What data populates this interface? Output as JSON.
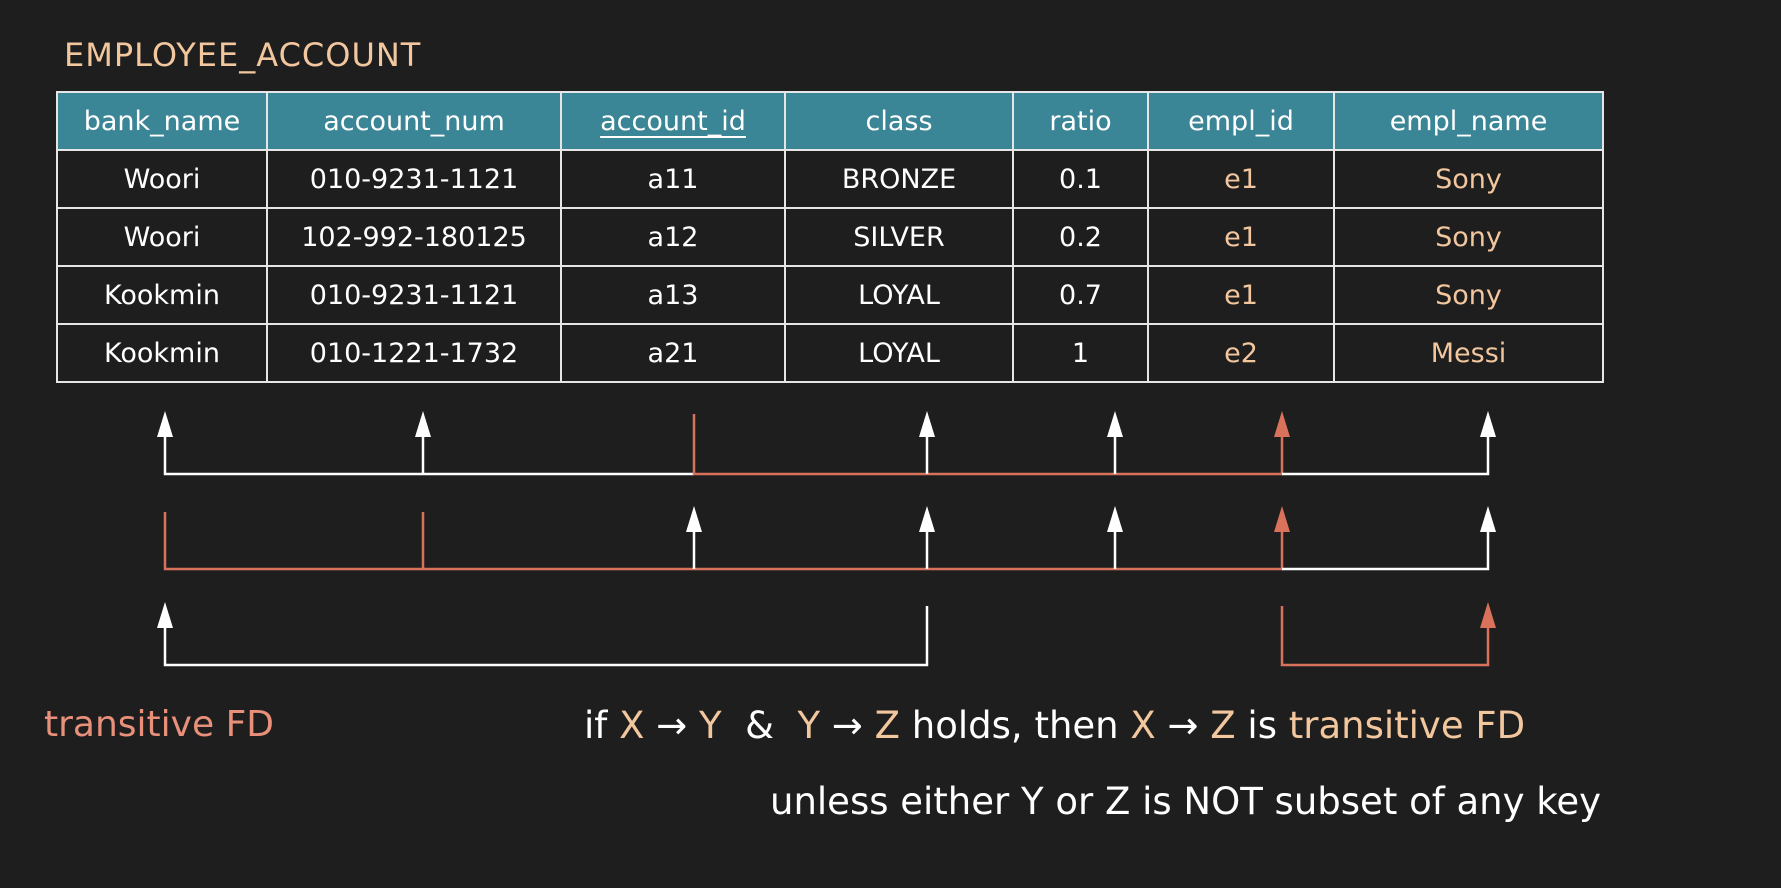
{
  "title": "EMPLOYEE_ACCOUNT",
  "colors": {
    "white": "#ffffff",
    "salmon": "#d9725a",
    "beige": "#f3c79e",
    "header_bg": "#3a8596"
  },
  "table": {
    "columns": [
      "bank_name",
      "account_num",
      "account_id",
      "class",
      "ratio",
      "empl_id",
      "empl_name"
    ],
    "primary_key": "account_id",
    "rows": [
      [
        "Woori",
        "010-9231-1121",
        "a11",
        "BRONZE",
        "0.1",
        "e1",
        "Sony"
      ],
      [
        "Woori",
        "102-992-180125",
        "a12",
        "SILVER",
        "0.2",
        "e1",
        "Sony"
      ],
      [
        "Kookmin",
        "010-9231-1121",
        "a13",
        "LOYAL",
        "0.7",
        "e1",
        "Sony"
      ],
      [
        "Kookmin",
        "010-1221-1732",
        "a21",
        "LOYAL",
        "1",
        "e2",
        "Messi"
      ]
    ]
  },
  "fd_diagram": [
    {
      "label": "fd-1",
      "determinant": [
        "account_id"
      ],
      "dependents": [
        "bank_name",
        "account_num",
        "class",
        "ratio",
        "empl_id",
        "empl_name"
      ],
      "highlight": "empl_id"
    },
    {
      "label": "fd-2",
      "determinant": [
        "bank_name",
        "account_num"
      ],
      "dependents": [
        "account_id",
        "class",
        "ratio",
        "empl_id",
        "empl_name"
      ],
      "highlight": "empl_id"
    },
    {
      "label": "fd-3",
      "determinant": [
        "class"
      ],
      "dependents": [
        "bank_name"
      ]
    },
    {
      "label": "fd-4",
      "determinant": [
        "empl_id"
      ],
      "dependents": [
        "empl_name"
      ]
    }
  ],
  "caption": "transitive FD",
  "rule": {
    "if": "if",
    "x1": "X",
    "arrow": "→",
    "y1": "Y",
    "amp": "&",
    "y2": "Y",
    "z1": "Z",
    "holds": "holds, then",
    "x2": "X",
    "z2": "Z",
    "is": "is",
    "transitive": "transitive FD",
    "line2": "unless either Y or Z is NOT subset of any key"
  }
}
